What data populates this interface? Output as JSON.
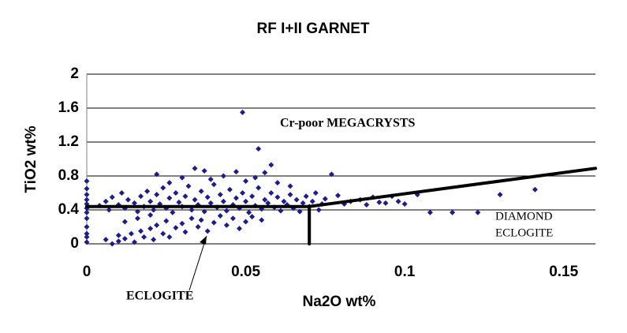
{
  "chart_data": {
    "type": "scatter",
    "title": "RF I+II GARNET",
    "x_label": "Na2O wt%",
    "y_label": "TiO2 wt%",
    "color": "#1c1c8e",
    "grid": true,
    "xlim": [
      0,
      0.16
    ],
    "xticks": [
      0,
      0.05,
      0.1,
      0.15
    ],
    "ylim": [
      0,
      2
    ],
    "yticks": [
      0,
      0.4,
      0.8,
      1.2,
      1.6,
      2
    ],
    "x": [
      0,
      0,
      0,
      0,
      0,
      0,
      0,
      0,
      0,
      0,
      0,
      0,
      0.006,
      0.008,
      0.01,
      0.01,
      0.012,
      0.014,
      0.015,
      0.017,
      0.018,
      0.02,
      0.021,
      0.022,
      0.024,
      0.025,
      0.026,
      0.028,
      0.03,
      0.031,
      0.033,
      0.035,
      0.036,
      0.038,
      0.04,
      0.042,
      0.044,
      0.046,
      0.048,
      0.05,
      0.052,
      0.055,
      0.012,
      0.016,
      0.02,
      0.004,
      0.006,
      0.007,
      0.008,
      0.01,
      0.011,
      0.012,
      0.013,
      0.015,
      0.016,
      0.017,
      0.018,
      0.019,
      0.02,
      0.021,
      0.022,
      0.023,
      0.024,
      0.025,
      0.026,
      0.027,
      0.028,
      0.029,
      0.03,
      0.031,
      0.032,
      0.033,
      0.034,
      0.035,
      0.036,
      0.037,
      0.038,
      0.039,
      0.04,
      0.041,
      0.042,
      0.043,
      0.044,
      0.045,
      0.046,
      0.047,
      0.048,
      0.049,
      0.05,
      0.051,
      0.052,
      0.053,
      0.054,
      0.055,
      0.056,
      0.057,
      0.058,
      0.059,
      0.06,
      0.061,
      0.062,
      0.063,
      0.064,
      0.065,
      0.066,
      0.067,
      0.068,
      0.069,
      0.07,
      0.071,
      0.072,
      0.073,
      0.074,
      0.075,
      0.022,
      0.026,
      0.03,
      0.034,
      0.037,
      0.039,
      0.043,
      0.047,
      0.05,
      0.053,
      0.056,
      0.06,
      0.064,
      0.049,
      0.054,
      0.058,
      0.077,
      0.079,
      0.081,
      0.083,
      0.086,
      0.088,
      0.09,
      0.092,
      0.094,
      0.096,
      0.098,
      0.1,
      0.104,
      0.108,
      0.115,
      0.123,
      0.13,
      0.141
    ],
    "values": [
      0.02,
      0.08,
      0.12,
      0.2,
      0.3,
      0.37,
      0.42,
      0.47,
      0.52,
      0.58,
      0.65,
      0.74,
      0.05,
      0,
      0.03,
      0.1,
      0.06,
      0.12,
      0.02,
      0.15,
      0.08,
      0.18,
      0.05,
      0.22,
      0.12,
      0.27,
      0.08,
      0.19,
      0.24,
      0.14,
      0.3,
      0.2,
      0.28,
      0.15,
      0.25,
      0.33,
      0.22,
      0.3,
      0.18,
      0.26,
      0.32,
      0.28,
      0.26,
      0.3,
      0.34,
      0.45,
      0.5,
      0.4,
      0.55,
      0.46,
      0.6,
      0.42,
      0.52,
      0.48,
      0.38,
      0.56,
      0.44,
      0.62,
      0.5,
      0.4,
      0.58,
      0.47,
      0.66,
      0.42,
      0.54,
      0.37,
      0.6,
      0.49,
      0.44,
      0.56,
      0.68,
      0.4,
      0.52,
      0.46,
      0.62,
      0.38,
      0.55,
      0.48,
      0.7,
      0.43,
      0.58,
      0.5,
      0.39,
      0.64,
      0.46,
      0.54,
      0.42,
      0.6,
      0.5,
      0.37,
      0.56,
      0.45,
      0.66,
      0.41,
      0.52,
      0.48,
      0.6,
      0.43,
      0.55,
      0.39,
      0.5,
      0.46,
      0.58,
      0.42,
      0.52,
      0.38,
      0.48,
      0.56,
      0.44,
      0.5,
      0.6,
      0.4,
      0.47,
      0.53,
      0.82,
      0.72,
      0.78,
      0.89,
      0.86,
      0.76,
      0.8,
      0.85,
      0.74,
      0.78,
      0.84,
      0.72,
      0.68,
      1.55,
      1.12,
      0.93,
      0.82,
      0.57,
      0.47,
      0.5,
      0.52,
      0.46,
      0.55,
      0.49,
      0.48,
      0.56,
      0.5,
      0.47,
      0.58,
      0.37,
      0.37,
      0.37,
      0.58,
      0.64
    ],
    "reference_lines": [
      {
        "x": [
          0,
          0.07
        ],
        "y": [
          0.44,
          0.44
        ]
      },
      {
        "x": [
          0.07,
          0.16
        ],
        "y": [
          0.44,
          0.89
        ]
      },
      {
        "x": [
          0.07,
          0.07
        ],
        "y": [
          0,
          0.44
        ]
      }
    ],
    "annotations": [
      "Cr-poor MEGACRYSTS",
      "DIAMOND",
      "ECLOGITE",
      "ECLOGITE"
    ]
  }
}
